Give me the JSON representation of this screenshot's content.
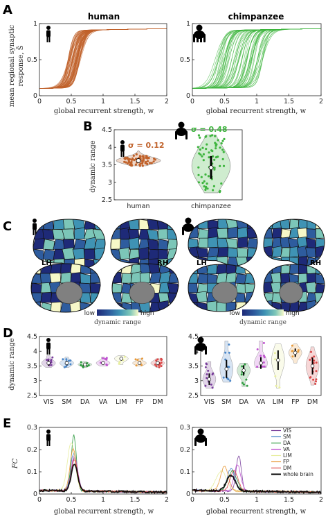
{
  "panels": {
    "a": "A",
    "b": "B",
    "c": "C",
    "d": "D",
    "e": "E"
  },
  "colors": {
    "human": "#c0622b",
    "chimpanzee": "#3fb53f",
    "networks": {
      "VIS": "#7a3f9c",
      "SM": "#4a86c8",
      "DA": "#2e9a3e",
      "VA": "#c052d0",
      "LIM": "#e8eea0",
      "FP": "#e89a3a",
      "DM": "#d94848",
      "whole brain": "#000000"
    }
  },
  "chart_data": [
    {
      "id": "A-human",
      "type": "line",
      "title": "human",
      "xlabel": "global recurrent strength, w",
      "ylabel_top": "mean regional synaptic",
      "ylabel_bottom": "response, S̄",
      "xlim": [
        0,
        2
      ],
      "ylim": [
        0,
        1
      ],
      "xticks": [
        "0",
        "0.5",
        "1",
        "1.5",
        "2"
      ],
      "yticks": [
        "0",
        "0.5",
        "1"
      ],
      "n_curves": 68,
      "transition_range": [
        0.45,
        0.65
      ],
      "low_level": 0.1,
      "high_level": 0.9,
      "color": "#c0622b",
      "grid": false
    },
    {
      "id": "A-chimp",
      "type": "line",
      "title": "chimpanzee",
      "xlabel": "global recurrent strength, w",
      "xlim": [
        0,
        2
      ],
      "ylim": [
        0,
        1
      ],
      "xticks": [
        "0",
        "0.5",
        "1",
        "1.5",
        "2"
      ],
      "yticks": [
        "0",
        "0.5",
        "1"
      ],
      "n_curves": 68,
      "transition_range": [
        0.35,
        1.1
      ],
      "low_level": 0.1,
      "high_level": 0.9,
      "color": "#3fb53f",
      "grid": false
    },
    {
      "id": "B",
      "type": "scatter",
      "ylabel": "dynamic range",
      "categories": [
        "human",
        "chimpanzee"
      ],
      "ylim": [
        2.5,
        4.5
      ],
      "yticks": [
        "2.5",
        "3",
        "3.5",
        "4",
        "4.5"
      ],
      "annotations": [
        "σ = 0.12",
        "σ = 0.48"
      ],
      "series": [
        {
          "name": "human",
          "median": 3.62,
          "q1": 3.58,
          "q3": 3.67,
          "min": 3.47,
          "max": 3.9,
          "spread": 0.12,
          "n": 68
        },
        {
          "name": "chimpanzee",
          "median": 3.42,
          "q1": 3.1,
          "q3": 3.75,
          "min": 2.7,
          "max": 4.35,
          "spread": 0.48,
          "n": 68
        }
      ]
    },
    {
      "id": "C",
      "type": "heatmap",
      "hemisphere_labels": [
        "LH",
        "RH"
      ],
      "colorbar": {
        "low": "low",
        "high": "high",
        "title": "dynamic range",
        "colors": [
          "#1e2a78",
          "#2e5c9e",
          "#3f93b4",
          "#7cc6b8",
          "#f6f8c8"
        ]
      }
    },
    {
      "id": "D-human",
      "type": "scatter",
      "ylabel": "dynamic range",
      "categories": [
        "VIS",
        "SM",
        "DA",
        "VA",
        "LIM",
        "FP",
        "DM"
      ],
      "ylim": [
        2.5,
        4.5
      ],
      "yticks": [
        "2.5",
        "3",
        "3.5",
        "4",
        "4.5"
      ],
      "series": [
        {
          "name": "VIS",
          "median": 3.6,
          "min": 3.45,
          "max": 3.85,
          "n": 12
        },
        {
          "name": "SM",
          "median": 3.6,
          "min": 3.45,
          "max": 3.8,
          "n": 10
        },
        {
          "name": "DA",
          "median": 3.55,
          "min": 3.45,
          "max": 3.65,
          "n": 9
        },
        {
          "name": "VA",
          "median": 3.6,
          "min": 3.5,
          "max": 3.8,
          "n": 9
        },
        {
          "name": "LIM",
          "median": 3.75,
          "min": 3.55,
          "max": 3.85,
          "n": 5
        },
        {
          "name": "FP",
          "median": 3.6,
          "min": 3.5,
          "max": 3.75,
          "n": 7
        },
        {
          "name": "DM",
          "median": 3.6,
          "min": 3.45,
          "max": 3.75,
          "n": 16
        }
      ]
    },
    {
      "id": "D-chimp",
      "type": "scatter",
      "categories": [
        "VIS",
        "SM",
        "DA",
        "VA",
        "LIM",
        "FP",
        "DM"
      ],
      "ylim": [
        2.5,
        4.5
      ],
      "yticks": [
        "2.5",
        "3",
        "3.5",
        "4",
        "4.5"
      ],
      "series": [
        {
          "name": "VIS",
          "median": 3.05,
          "min": 2.75,
          "max": 3.65,
          "n": 12
        },
        {
          "name": "SM",
          "median": 3.4,
          "min": 2.95,
          "max": 4.35,
          "n": 10
        },
        {
          "name": "DA",
          "median": 3.35,
          "min": 2.8,
          "max": 3.6,
          "n": 9
        },
        {
          "name": "VA",
          "median": 3.6,
          "min": 3.45,
          "max": 4.35,
          "n": 9
        },
        {
          "name": "LIM",
          "median": 3.7,
          "min": 2.75,
          "max": 4.25,
          "n": 5
        },
        {
          "name": "FP",
          "median": 3.95,
          "min": 3.6,
          "max": 4.25,
          "n": 7
        },
        {
          "name": "DM",
          "median": 3.5,
          "min": 2.85,
          "max": 4.15,
          "n": 16
        }
      ]
    },
    {
      "id": "E-human",
      "type": "line",
      "xlabel": "global recurrent strength, w",
      "ylabel": "FC",
      "xlim": [
        0,
        2
      ],
      "ylim": [
        0,
        0.3
      ],
      "xticks": [
        "0",
        "0.5",
        "1",
        "1.5",
        "2"
      ],
      "yticks": [
        "0",
        "0.1",
        "0.2",
        "0.3"
      ],
      "series": [
        {
          "name": "VIS",
          "peak_x": 0.55,
          "peak_y": 0.15,
          "width": 0.05
        },
        {
          "name": "SM",
          "peak_x": 0.54,
          "peak_y": 0.17,
          "width": 0.05
        },
        {
          "name": "DA",
          "peak_x": 0.54,
          "peak_y": 0.25,
          "width": 0.04
        },
        {
          "name": "VA",
          "peak_x": 0.55,
          "peak_y": 0.16,
          "width": 0.05
        },
        {
          "name": "LIM",
          "peak_x": 0.5,
          "peak_y": 0.22,
          "width": 0.06
        },
        {
          "name": "FP",
          "peak_x": 0.53,
          "peak_y": 0.19,
          "width": 0.05
        },
        {
          "name": "DM",
          "peak_x": 0.55,
          "peak_y": 0.14,
          "width": 0.05
        },
        {
          "name": "whole brain",
          "peak_x": 0.55,
          "peak_y": 0.12,
          "width": 0.05
        }
      ]
    },
    {
      "id": "E-chimp",
      "type": "line",
      "xlabel": "global recurrent strength, w",
      "xlim": [
        0,
        2
      ],
      "ylim": [
        0,
        0.3
      ],
      "xticks": [
        "0",
        "0.5",
        "1",
        "1.5",
        "2"
      ],
      "yticks": [
        "0",
        "0.1",
        "0.2",
        "0.3"
      ],
      "legend": [
        "VIS",
        "SM",
        "DA",
        "VA",
        "LIM",
        "FP",
        "DM",
        "whole brain"
      ],
      "legend_position": "top-right",
      "series": [
        {
          "name": "VIS",
          "peak_x": 0.72,
          "peak_y": 0.16,
          "width": 0.04
        },
        {
          "name": "SM",
          "peak_x": 0.6,
          "peak_y": 0.1,
          "width": 0.06
        },
        {
          "name": "DA",
          "peak_x": 0.62,
          "peak_y": 0.09,
          "width": 0.07
        },
        {
          "name": "VA",
          "peak_x": 0.7,
          "peak_y": 0.12,
          "width": 0.05
        },
        {
          "name": "LIM",
          "peak_x": 0.45,
          "peak_y": 0.09,
          "width": 0.08
        },
        {
          "name": "FP",
          "peak_x": 0.5,
          "peak_y": 0.11,
          "width": 0.06
        },
        {
          "name": "DM",
          "peak_x": 0.65,
          "peak_y": 0.09,
          "width": 0.06
        },
        {
          "name": "whole brain",
          "peak_x": 0.6,
          "peak_y": 0.07,
          "width": 0.07
        }
      ]
    }
  ]
}
